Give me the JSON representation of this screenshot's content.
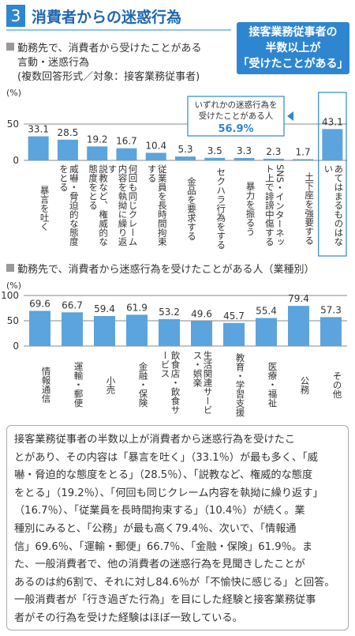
{
  "header": {
    "number": "3",
    "title": "消費者からの迷惑行為"
  },
  "callout": [
    "接客業務従事者の",
    "半数以上が",
    "「受けたことがある」"
  ],
  "chart_data": [
    {
      "type": "bar",
      "title": [
        "勤務先で、消費者から受けたことがある",
        "言動・迷惑行為",
        "(複数回答形式／対象：接客業務従事者)"
      ],
      "unit": "(%)",
      "annotation": [
        "いずれかの迷惑行為を",
        "受けたことがある人",
        "56.9%"
      ],
      "categories": [
        "暴言を吐く",
        "威嚇・脅迫的な態度をとる",
        "説教など、権威的な態度をとる",
        "何回も同じクレーム内容を執拗に繰り返す",
        "従業員を長時間拘束する",
        "金品を要求する",
        "セクハラ行為をする",
        "暴力を振るう",
        "SNS・インターネット上で誹謗中傷する",
        "土下座を強要する",
        "あてはまるものはない"
      ],
      "values": [
        33.1,
        28.5,
        19.2,
        16.7,
        10.4,
        5.3,
        3.5,
        3.3,
        2.3,
        1.7,
        43.1
      ],
      "color": "#5ba4dd",
      "ylim": [
        0,
        50
      ],
      "yticks": [
        0,
        50
      ],
      "grid": true
    },
    {
      "type": "bar",
      "title": [
        "勤務先で、消費者から迷惑行為を受けたことがある人（業種別）"
      ],
      "unit": "(%)",
      "categories": [
        "情報通信",
        "運輸・郵便",
        "小売",
        "金融・保険",
        "飲食店・飲食サービス",
        "生活関連サービス・娯楽",
        "教育・学習支援",
        "医療・福祉",
        "公務",
        "その他"
      ],
      "values": [
        69.6,
        66.7,
        59.4,
        61.9,
        53.2,
        49.6,
        45.7,
        55.4,
        79.4,
        57.3
      ],
      "color": "#5ba4dd",
      "ylim": [
        0,
        100
      ],
      "yticks": [
        0,
        50,
        100
      ],
      "grid": true
    }
  ],
  "summary": [
    "接客業務従事者の半数以上が消費者から迷惑行為を受けたこ",
    "とがあり、その内容は「暴言を吐く」（33.1％）が最も多く、「威",
    "嚇・脅迫的な態度をとる」（28.5％）、「説教など、権威的な態度",
    "をとる」（19.2％）、「何回も同じクレーム内容を執拗に繰り返す」",
    "（16.7％）、「従業員を長時間拘束する」（10.4％）が続く。業",
    "種別にみると、「公務」が最も高く79.4％、次いで、「情報通",
    "信」69.6％、「運輸・郵便」66.7％、「金融・保険」61.9％。ま",
    "た、一般消費者で、他の消費者の迷惑行為を見聞きしたことが",
    "あるのは約6割で、それに対し84.6％が「不愉快に感じる」と回答。",
    "一般消費者が「行き過ぎた行為」を目にした経験と接客業務従事",
    "者がその行為を受けた経験はほぼ一致している。"
  ]
}
